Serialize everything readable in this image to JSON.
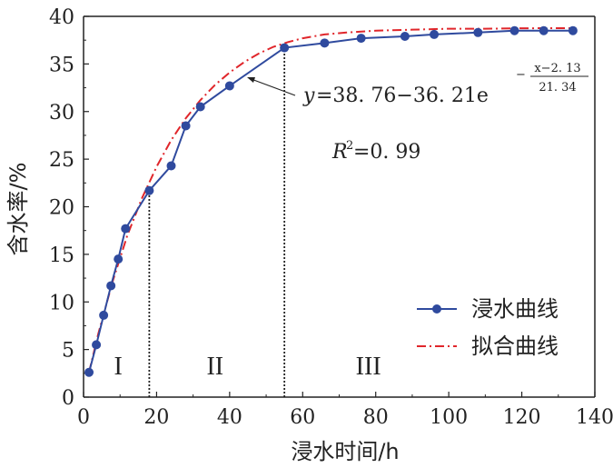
{
  "chart_data": {
    "type": "line",
    "xlabel": "浸水时间/h",
    "ylabel": "含水率/%",
    "xlim": [
      0,
      140
    ],
    "ylim": [
      0,
      40
    ],
    "x_ticks": [
      "0",
      "20",
      "40",
      "60",
      "80",
      "100",
      "120",
      "140"
    ],
    "y_ticks": [
      "0",
      "5",
      "10",
      "15",
      "20",
      "25",
      "30",
      "35",
      "40"
    ],
    "grid": false,
    "legend_position": "bottom-right",
    "series": [
      {
        "name": "浸水曲线",
        "color": "#2f4a9e",
        "style": "solid-with-markers",
        "x": [
          1.5,
          3.5,
          5.5,
          7.5,
          9.5,
          11.5,
          18,
          24,
          28,
          32,
          40,
          55,
          66,
          76,
          88,
          96,
          108,
          118,
          126,
          134
        ],
        "y": [
          2.6,
          5.5,
          8.6,
          11.7,
          14.5,
          17.7,
          21.7,
          24.3,
          28.5,
          30.5,
          32.7,
          36.7,
          37.2,
          37.7,
          37.9,
          38.1,
          38.3,
          38.5,
          38.5,
          38.5
        ]
      },
      {
        "name": "拟合曲线",
        "color": "#e0262b",
        "style": "dash-dot",
        "x": [
          1.5,
          4,
          8,
          12,
          16,
          20,
          24,
          28,
          32,
          36,
          40,
          44,
          48,
          52,
          56,
          60,
          66,
          72,
          80,
          90,
          100,
          110,
          120,
          134
        ],
        "y": [
          2.6,
          6.6,
          12.2,
          17.0,
          20.9,
          24.2,
          27.0,
          29.3,
          31.2,
          32.8,
          34.1,
          35.2,
          36.1,
          36.8,
          37.3,
          37.7,
          38.1,
          38.3,
          38.5,
          38.6,
          38.7,
          38.7,
          38.75,
          38.76
        ]
      }
    ],
    "regions": [
      {
        "label": "I",
        "x": 9.5
      },
      {
        "label": "II",
        "x": 36
      },
      {
        "label": "III",
        "x": 78
      }
    ],
    "dividers": [
      18,
      55
    ],
    "annotations": {
      "equation_lhs": "y",
      "equation_body": "=38. 76−36. 21e",
      "exponent_sign": "−",
      "exponent_numerator": "x−2. 13",
      "exponent_denominator": "21. 34",
      "r2_symbol": "R",
      "r2_superscript": "2",
      "r2_value": "=0. 99"
    }
  }
}
